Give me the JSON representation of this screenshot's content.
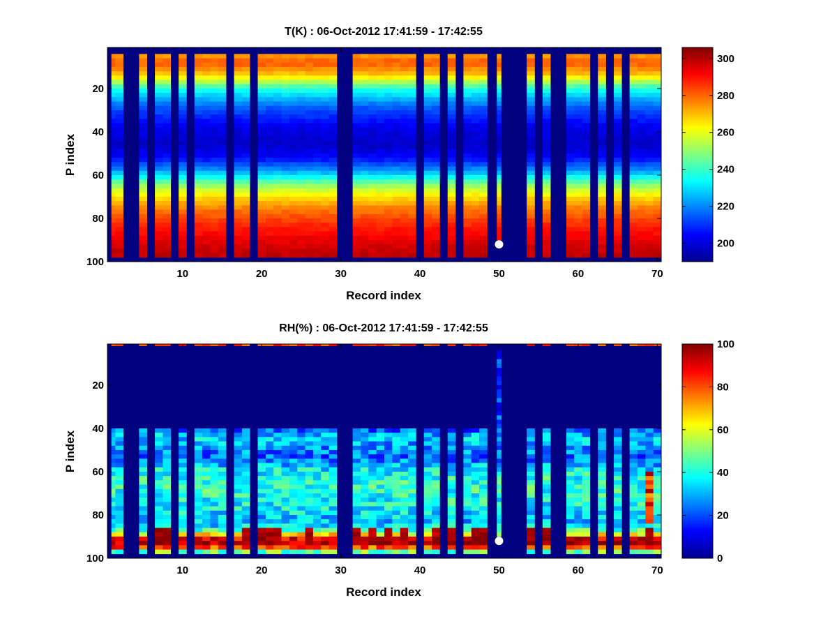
{
  "chart_data": [
    {
      "type": "heatmap",
      "id": "temperature",
      "title": "T(K) : 06-Oct-2012 17:41:59 - 17:42:55",
      "xlabel": "Record index",
      "ylabel": "P index",
      "xlim": [
        0.5,
        70.5
      ],
      "ylim": [
        1,
        100
      ],
      "xticks": [
        10,
        20,
        30,
        40,
        50,
        60,
        70
      ],
      "yticks": [
        20,
        40,
        60,
        80,
        100
      ],
      "colorbar": {
        "colormap": "jet",
        "clim": [
          190,
          306
        ],
        "ticks": [
          200,
          220,
          240,
          260,
          280,
          300
        ]
      },
      "valid_records": [
        1,
        2,
        3,
        4,
        5,
        6,
        7,
        8,
        9,
        10,
        11,
        12,
        13,
        14,
        15,
        16,
        17,
        18,
        19,
        20,
        21,
        22,
        23,
        24,
        25,
        26,
        27,
        28,
        29,
        30,
        31,
        32,
        33,
        34,
        35,
        36,
        37,
        38,
        39,
        40,
        41,
        42,
        43,
        44,
        45,
        46,
        47,
        48,
        49,
        50,
        51,
        52,
        53,
        54,
        55,
        56,
        57,
        58,
        59,
        60,
        61,
        62,
        63,
        64,
        65,
        66,
        67,
        68,
        69,
        70
      ],
      "gap_records": [
        3,
        4,
        6,
        9,
        11,
        16,
        19,
        30,
        31,
        40,
        43,
        45,
        49,
        51,
        52,
        53,
        55,
        57,
        58,
        62,
        64,
        66
      ],
      "partial_record": {
        "record": 50,
        "top_p": 4,
        "bottom_p": 90
      },
      "data_p_range": [
        4,
        98
      ],
      "profile": {
        "p": [
          4,
          8,
          14,
          20,
          28,
          38,
          46,
          52,
          58,
          64,
          70,
          76,
          82,
          88,
          94,
          98
        ],
        "value": [
          272,
          282,
          268,
          238,
          216,
          202,
          198,
          205,
          222,
          248,
          266,
          278,
          286,
          292,
          297,
          299
        ]
      },
      "marker": {
        "record": 50,
        "p": 92,
        "color": "#ffffff"
      }
    },
    {
      "type": "heatmap",
      "id": "relative-humidity",
      "title": "RH(%) : 06-Oct-2012 17:41:59 - 17:42:55",
      "xlabel": "Record index",
      "ylabel": "P index",
      "xlim": [
        0.5,
        70.5
      ],
      "ylim": [
        1,
        100
      ],
      "xticks": [
        10,
        20,
        30,
        40,
        50,
        60,
        70
      ],
      "yticks": [
        20,
        40,
        60,
        80,
        100
      ],
      "colorbar": {
        "colormap": "jet",
        "clim": [
          0,
          100
        ],
        "ticks": [
          0,
          20,
          40,
          60,
          80,
          100
        ]
      },
      "gap_records": [
        3,
        4,
        6,
        9,
        11,
        16,
        19,
        30,
        31,
        40,
        43,
        45,
        49,
        51,
        52,
        53,
        55,
        57,
        58,
        62,
        64,
        66
      ],
      "partial_record": {
        "record": 50,
        "top_p": 4,
        "bottom_p": 90
      },
      "data_p_range": [
        40,
        98
      ],
      "dry_layer": {
        "from_p": 1,
        "to_p": 40,
        "value": 0
      },
      "top_row_values": {
        "p": 1,
        "value": 90
      },
      "profile": {
        "p": [
          40,
          44,
          48,
          54,
          60,
          66,
          72,
          78,
          84,
          88,
          91,
          94,
          97
        ],
        "value": [
          18,
          34,
          28,
          22,
          38,
          42,
          40,
          36,
          30,
          50,
          90,
          96,
          48
        ]
      },
      "moist_records": [
        7,
        8,
        18,
        20,
        21,
        22,
        26,
        32,
        34,
        36,
        38,
        42,
        44,
        47,
        48,
        54,
        56,
        69
      ],
      "marker": {
        "record": 50,
        "p": 92,
        "color": "#ffffff"
      }
    }
  ]
}
